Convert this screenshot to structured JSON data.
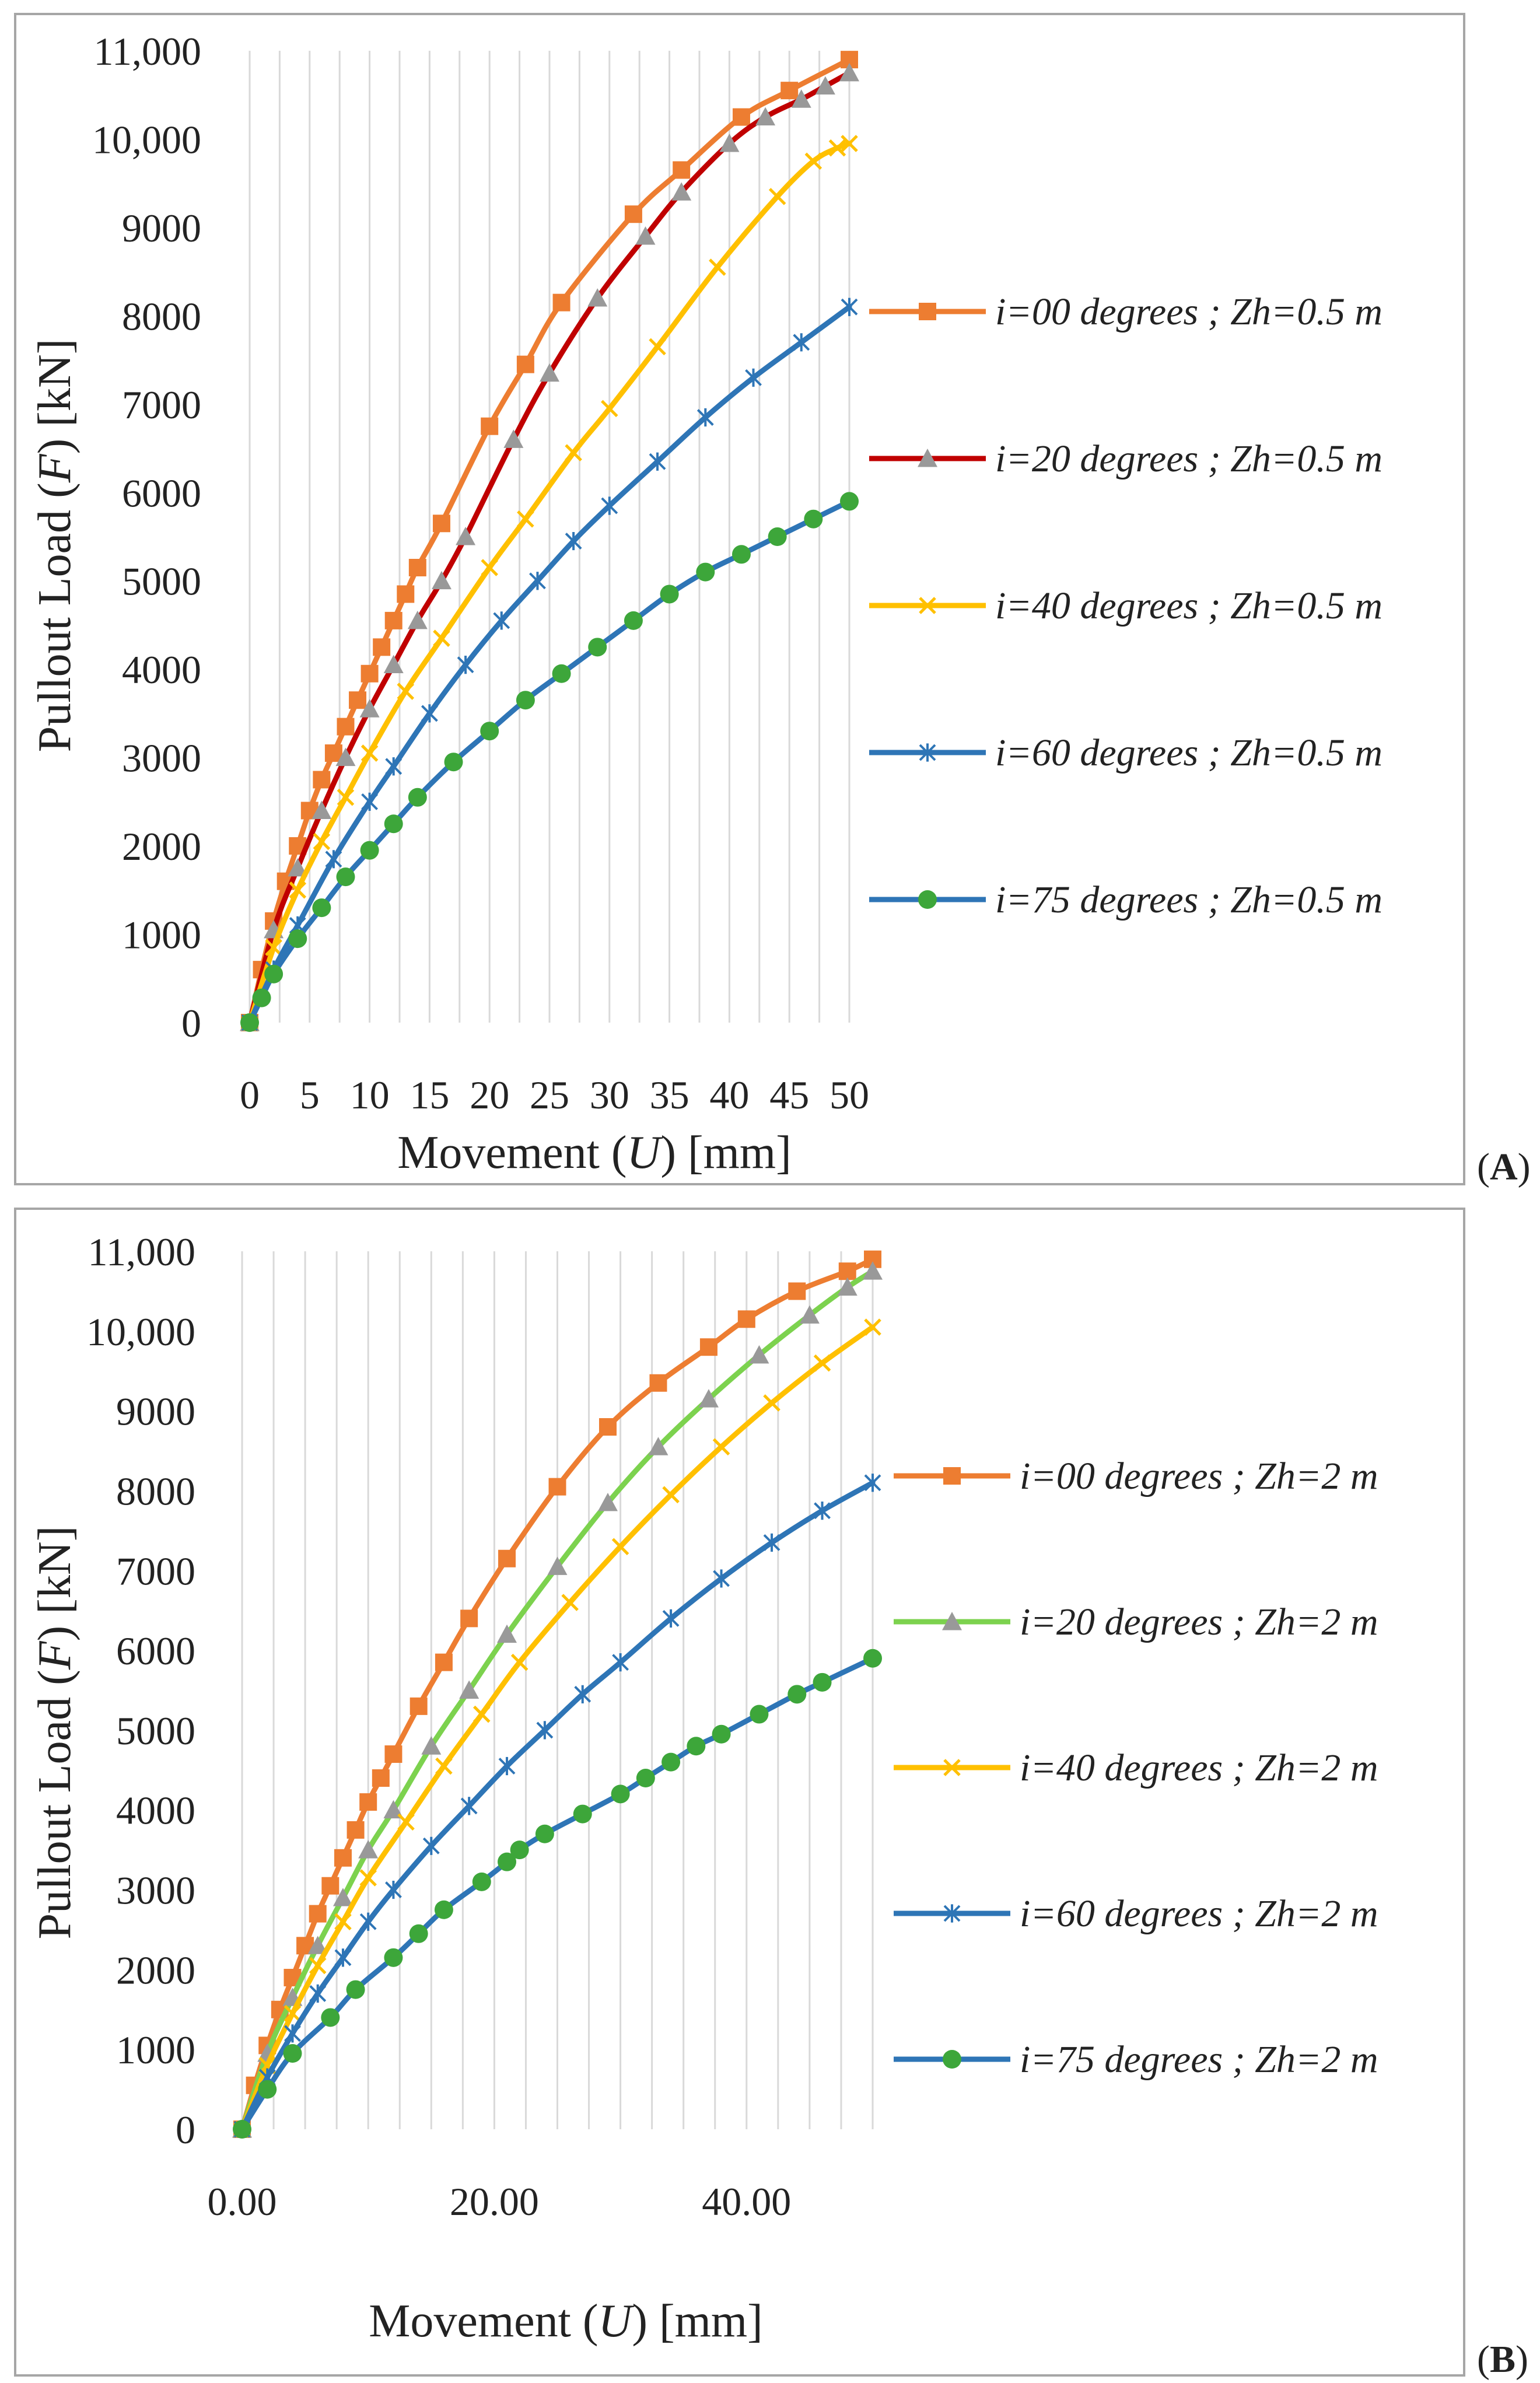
{
  "figure": {
    "panels": [
      "A",
      "B"
    ],
    "panel_labels": [
      {
        "open": "(",
        "letter": "A",
        "close": ")"
      },
      {
        "open": "(",
        "letter": "B",
        "close": ")"
      }
    ]
  },
  "colors": {
    "i00": "#ED7D31",
    "i20_A": "#C00000",
    "i20_B": "#7CD24E",
    "i40": "#FFC000",
    "i60": "#2E75B6",
    "i75": "#2E75B6",
    "marker_i75": "#3DA63A",
    "marker_i20": "#999999",
    "grid": "#D9D9D9",
    "frame": "#A6A6A6"
  },
  "chart_data": [
    {
      "panel": "A",
      "type": "line",
      "title": "",
      "xlabel": {
        "pre": "Movement (",
        "var": "U",
        "post": ") [mm]"
      },
      "ylabel": {
        "pre": "Pullout  Load (",
        "var": "F",
        "post": ") [kN]"
      },
      "xlim": [
        0,
        50
      ],
      "ylim": [
        0,
        11000
      ],
      "xticks": [
        0,
        5,
        10,
        15,
        20,
        25,
        30,
        35,
        40,
        45,
        50
      ],
      "xtick_labels": [
        "0",
        "5",
        "10",
        "15",
        "20",
        "25",
        "30",
        "35",
        "40",
        "45",
        "50"
      ],
      "yticks": [
        0,
        1000,
        2000,
        3000,
        4000,
        5000,
        6000,
        7000,
        8000,
        9000,
        10000,
        11000
      ],
      "ytick_labels": [
        "0",
        "1000",
        "2000",
        "3000",
        "4000",
        "5000",
        "6000",
        "7000",
        "8000",
        "9000",
        "10,000",
        "11,000"
      ],
      "grid": "vertical",
      "legend_position": "right",
      "series": [
        {
          "name": "i=00 degrees ; Zh=0.5 m",
          "color_key": "i00",
          "marker": "square",
          "x": [
            0,
            1,
            2,
            3,
            4,
            5,
            6,
            7,
            8,
            9,
            10,
            11,
            12,
            13,
            14,
            16,
            20,
            23,
            26,
            32,
            36,
            41,
            45,
            50
          ],
          "y": [
            0,
            600,
            1150,
            1600,
            2000,
            2400,
            2750,
            3050,
            3350,
            3650,
            3950,
            4250,
            4550,
            4850,
            5150,
            5650,
            6750,
            7450,
            8150,
            9150,
            9650,
            10250,
            10550,
            10900
          ]
        },
        {
          "name": "i=20 degrees ; Zh=0.5 m",
          "color_key": "i20_A",
          "marker": "triangle",
          "x": [
            0,
            2,
            4,
            6,
            8,
            10,
            12,
            14,
            16,
            18,
            22,
            25,
            29,
            33,
            36,
            40,
            43,
            46,
            48,
            50
          ],
          "y": [
            0,
            1050,
            1750,
            2400,
            3000,
            3550,
            4050,
            4550,
            5000,
            5500,
            6600,
            7350,
            8200,
            8900,
            9400,
            9950,
            10250,
            10450,
            10600,
            10750
          ]
        },
        {
          "name": "i=40 degrees ; Zh=0.5 m",
          "color_key": "i40",
          "marker": "x",
          "x": [
            0,
            2,
            4,
            6,
            8,
            10,
            13,
            16,
            20,
            23,
            27,
            30,
            34,
            39,
            44,
            47,
            49,
            50
          ],
          "y": [
            0,
            850,
            1500,
            2050,
            2550,
            3050,
            3750,
            4350,
            5150,
            5700,
            6450,
            6950,
            7650,
            8550,
            9350,
            9750,
            9900,
            9950
          ]
        },
        {
          "name": "i=60 degrees ; Zh=0.5 m",
          "color_key": "i60",
          "marker": "star",
          "x": [
            0,
            2,
            4,
            7,
            10,
            12,
            15,
            18,
            21,
            24,
            27,
            30,
            34,
            38,
            42,
            46,
            50
          ],
          "y": [
            0,
            600,
            1100,
            1850,
            2500,
            2900,
            3500,
            4050,
            4550,
            5000,
            5450,
            5850,
            6350,
            6850,
            7300,
            7700,
            8100
          ]
        },
        {
          "name": "i=75 degrees ; Zh=0.5 m",
          "color_key": "i75",
          "marker": "circle",
          "x": [
            0,
            1,
            2,
            4,
            6,
            8,
            10,
            12,
            14,
            17,
            20,
            23,
            26,
            29,
            32,
            35,
            38,
            41,
            44,
            47,
            50
          ],
          "y": [
            0,
            280,
            550,
            950,
            1300,
            1650,
            1950,
            2250,
            2550,
            2950,
            3300,
            3650,
            3950,
            4250,
            4550,
            4850,
            5100,
            5300,
            5500,
            5700,
            5900
          ]
        }
      ]
    },
    {
      "panel": "B",
      "type": "line",
      "title": "",
      "xlabel": {
        "pre": "Movement (",
        "var": "U",
        "post": ") [mm]"
      },
      "ylabel": {
        "pre": "Pullout  Load (",
        "var": "F",
        "post": ") [kN]"
      },
      "xlim": [
        0,
        50
      ],
      "ylim": [
        0,
        11000
      ],
      "xticks": [
        0,
        20,
        40
      ],
      "xtick_labels": [
        "0.00",
        "20.00",
        "40.00"
      ],
      "yticks": [
        0,
        1000,
        2000,
        3000,
        4000,
        5000,
        6000,
        7000,
        8000,
        9000,
        10000,
        11000
      ],
      "ytick_labels": [
        "0",
        "1000",
        "2000",
        "3000",
        "4000",
        "5000",
        "6000",
        "7000",
        "8000",
        "9000",
        "10,000",
        "11,000"
      ],
      "grid": "vertical",
      "legend_position": "right",
      "series": [
        {
          "name": "i=00 degrees ; Zh=2 m",
          "color_key": "i00",
          "marker": "square",
          "x": [
            0,
            1,
            2,
            3,
            4,
            5,
            6,
            7,
            8,
            9,
            10,
            11,
            12,
            14,
            16,
            18,
            21,
            25,
            29,
            33,
            37,
            40,
            44,
            48,
            50
          ],
          "y": [
            0,
            550,
            1050,
            1500,
            1900,
            2300,
            2700,
            3050,
            3400,
            3750,
            4100,
            4400,
            4700,
            5300,
            5850,
            6400,
            7150,
            8050,
            8800,
            9350,
            9800,
            10150,
            10500,
            10750,
            10900
          ]
        },
        {
          "name": "i=20 degrees ; Zh=2 m",
          "color_key": "i20_B",
          "marker": "triangle",
          "x": [
            0,
            2,
            4,
            6,
            8,
            10,
            12,
            15,
            18,
            21,
            25,
            29,
            33,
            37,
            41,
            45,
            48,
            50
          ],
          "y": [
            0,
            950,
            1650,
            2300,
            2900,
            3500,
            4000,
            4800,
            5500,
            6200,
            7050,
            7850,
            8550,
            9150,
            9700,
            10200,
            10550,
            10750
          ]
        },
        {
          "name": "i=40 degrees ; Zh=2 m",
          "color_key": "i40",
          "marker": "x",
          "x": [
            0,
            2,
            4,
            6,
            8,
            10,
            13,
            16,
            19,
            22,
            26,
            30,
            34,
            38,
            42,
            46,
            50
          ],
          "y": [
            0,
            800,
            1450,
            2050,
            2600,
            3150,
            3850,
            4550,
            5200,
            5850,
            6600,
            7300,
            7950,
            8550,
            9100,
            9600,
            10050
          ]
        },
        {
          "name": "i=60 degrees ; Zh=2 m",
          "color_key": "i60",
          "marker": "star",
          "x": [
            0,
            2,
            4,
            6,
            8,
            10,
            12,
            15,
            18,
            21,
            24,
            27,
            30,
            34,
            38,
            42,
            46,
            50
          ],
          "y": [
            0,
            650,
            1200,
            1700,
            2150,
            2600,
            3000,
            3550,
            4050,
            4550,
            5000,
            5450,
            5850,
            6400,
            6900,
            7350,
            7750,
            8100
          ]
        },
        {
          "name": "i=75 degrees ; Zh=2 m",
          "color_key": "i75",
          "marker": "circle",
          "x": [
            0,
            2,
            4,
            7,
            9,
            12,
            14,
            16,
            19,
            21,
            22,
            24,
            27,
            30,
            32,
            34,
            36,
            38,
            41,
            44,
            46,
            50
          ],
          "y": [
            0,
            500,
            950,
            1400,
            1750,
            2150,
            2450,
            2750,
            3100,
            3350,
            3500,
            3700,
            3950,
            4200,
            4400,
            4600,
            4800,
            4950,
            5200,
            5450,
            5600,
            5900
          ]
        }
      ]
    }
  ]
}
